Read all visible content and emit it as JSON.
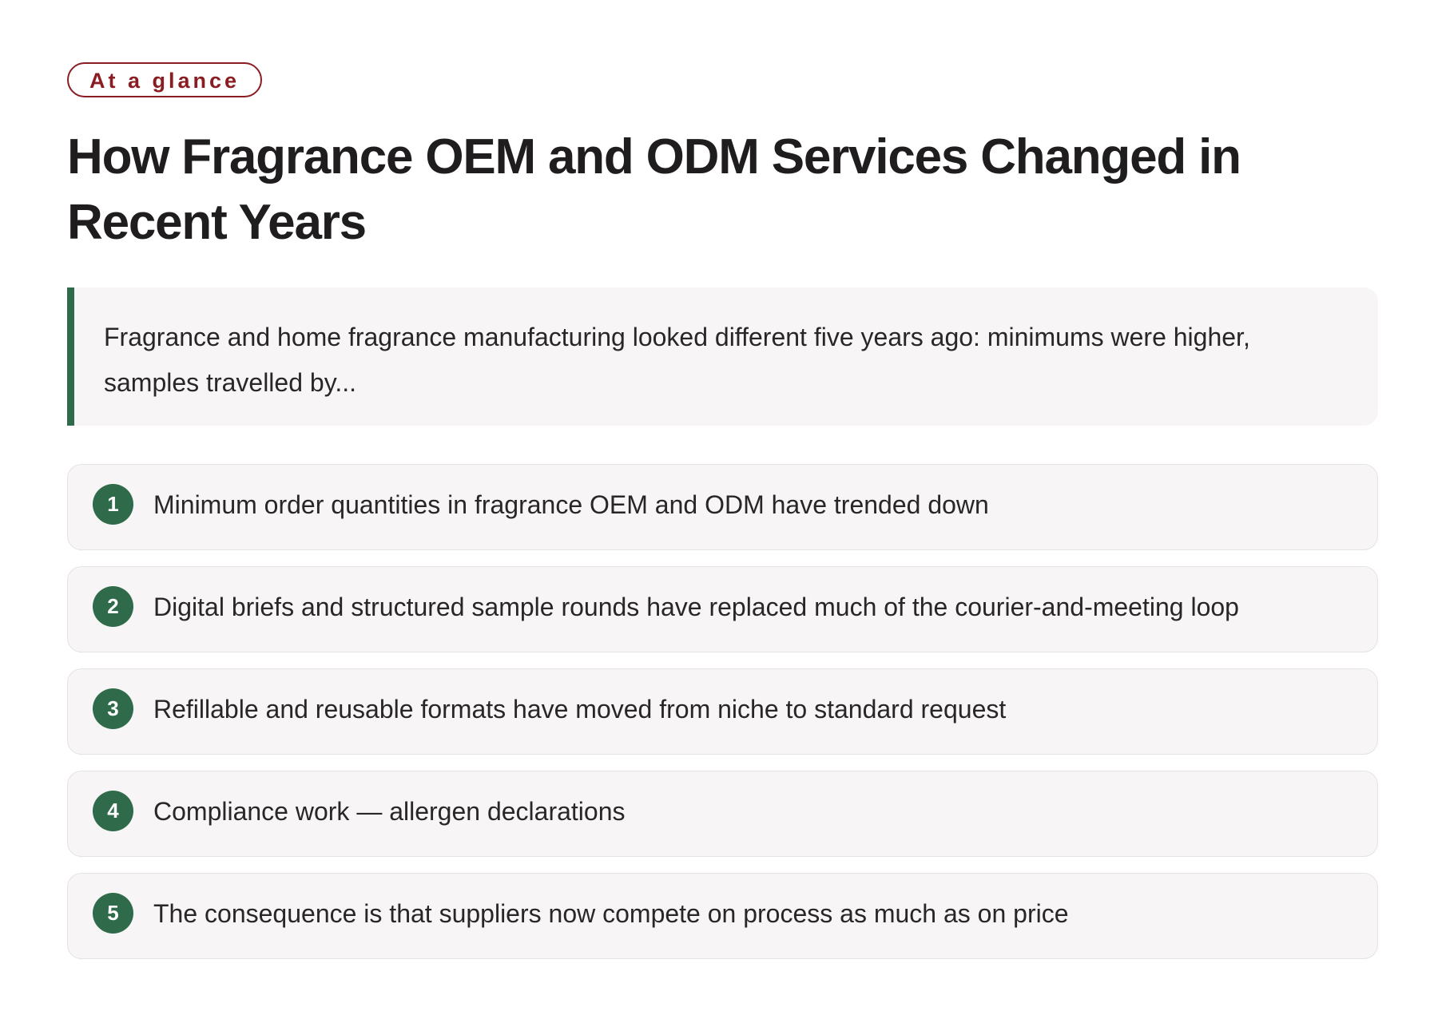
{
  "badge": {
    "label": "At a glance"
  },
  "header": {
    "title": "How Fragrance OEM and ODM Services Changed in Recent Years"
  },
  "intro": {
    "text": "Fragrance and home fragrance manufacturing looked different five years ago: minimums were higher, samples travelled by..."
  },
  "items": [
    {
      "number": "1",
      "text": "Minimum order quantities in fragrance OEM and ODM have trended down"
    },
    {
      "number": "2",
      "text": "Digital briefs and structured sample rounds have replaced much of the courier-and-meeting loop"
    },
    {
      "number": "3",
      "text": "Refillable and reusable formats have moved from niche to standard request"
    },
    {
      "number": "4",
      "text": "Compliance work — allergen declarations"
    },
    {
      "number": "5",
      "text": "The consequence is that suppliers now compete on process as much as on price"
    }
  ],
  "colors": {
    "accent_red": "#8a1d22",
    "accent_green": "#2f6b4a",
    "card_background": "#f7f5f5"
  }
}
